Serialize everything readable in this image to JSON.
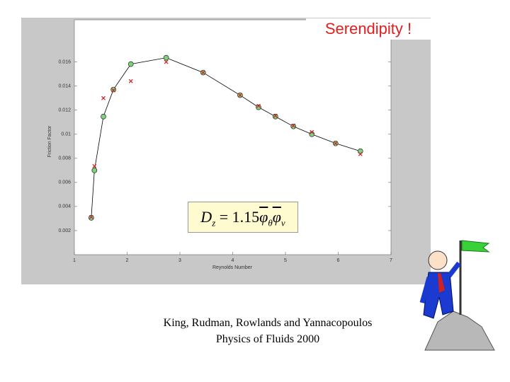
{
  "slide": {
    "headline": "Serendipity !",
    "caption": [
      "King, Rudman, Rowlands and Yannacopoulos",
      "Physics of Fluids 2000"
    ],
    "equation": {
      "lhs": "D",
      "lhs_sub": "z",
      "rhs": "= 1.15",
      "f1": "φ",
      "f1_sub": "θ",
      "f2": "φ",
      "f2_sub": "ν"
    }
  },
  "chart_data": {
    "type": "line",
    "x_label": "Reynolds Number",
    "y_label": "Friction Factor",
    "x": [
      1.32,
      1.38,
      1.55,
      1.74,
      2.07,
      2.74,
      3.44,
      4.14,
      4.49,
      4.81,
      5.15,
      5.5,
      5.95,
      6.42
    ],
    "series": [
      {
        "color": "#000000",
        "marker": "circle",
        "marker_color": "#7fd17f",
        "values": [
          0.00306,
          0.007,
          0.01147,
          0.01371,
          0.01582,
          0.01635,
          0.01512,
          0.01324,
          0.01224,
          0.01147,
          0.01065,
          0.01,
          0.00924,
          0.00859
        ]
      },
      {
        "color": "#d02020",
        "marker": "x",
        "values": [
          0.00312,
          0.00735,
          0.013,
          0.01365,
          0.01441,
          0.016,
          0.01512,
          0.01324,
          0.01235,
          0.01153,
          0.01071,
          0.01018,
          0.00924,
          0.00835
        ]
      }
    ],
    "xlim": [
      1,
      7
    ],
    "xticks": [
      1,
      2,
      3,
      4,
      5,
      6,
      7
    ],
    "ylim": [
      0,
      0.0195
    ],
    "yticks": [
      0.002,
      0.004,
      0.006,
      0.008,
      0.01,
      0.012,
      0.014,
      0.016
    ]
  }
}
